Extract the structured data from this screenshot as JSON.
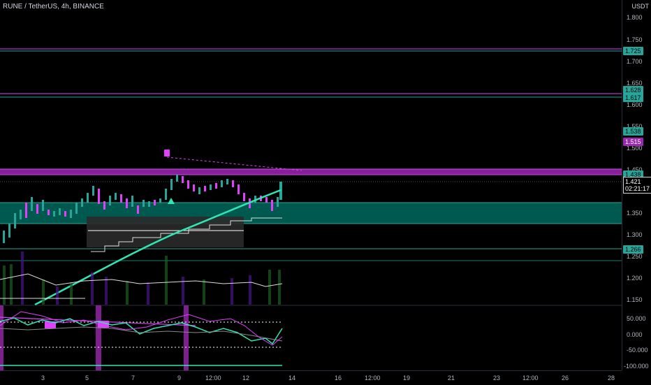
{
  "header": {
    "title": "RUNE / TetherUS, 4h, BINANCE"
  },
  "price_axis": {
    "currency": "USDT",
    "ticks": [
      "1.800",
      "1.750",
      "1.700",
      "1.650",
      "1.600",
      "1.550",
      "1.500",
      "1.450",
      "1.350",
      "1.300",
      "1.250",
      "1.200",
      "1.150"
    ],
    "tags": [
      {
        "label": "1.725",
        "color": "#26a69a"
      },
      {
        "label": "1.628",
        "color": "#26a69a"
      },
      {
        "label": "1.617",
        "color": "#26a69a"
      },
      {
        "label": "1.538",
        "color": "#26a69a"
      },
      {
        "label": "1.515",
        "color": "#9c27b0"
      },
      {
        "label": "1.438",
        "color": "#26a69a"
      },
      {
        "label": "1.266",
        "color": "#26a69a"
      }
    ],
    "last_price": "1.421",
    "countdown": "02:21:17",
    "osc_ticks": [
      "50.000",
      "0.000",
      "-50.000",
      "-100.000"
    ]
  },
  "time_axis": {
    "ticks": [
      "3",
      "5",
      "7",
      "9",
      "12:00",
      "12",
      "14",
      "16",
      "12:00",
      "19",
      "21",
      "23",
      "12:00",
      "26",
      "28"
    ]
  },
  "colors": {
    "accent_teal": "#26a69a",
    "magenta": "#e040fb",
    "purple": "#9c27b0",
    "bright_teal": "#2ee6b4"
  }
}
